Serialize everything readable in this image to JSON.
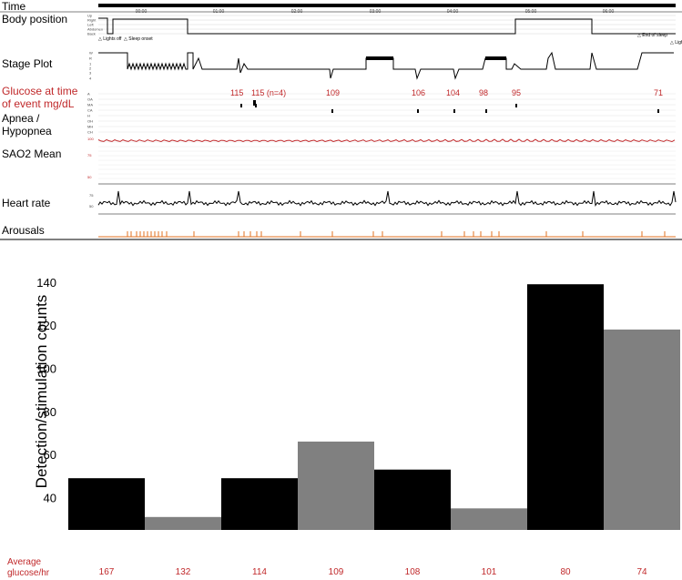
{
  "labels": {
    "time": "Time",
    "body_position": "Body position",
    "stage_plot": "Stage Plot",
    "glucose_line1": "Glucose at time",
    "glucose_line2": "of event mg/dL",
    "apnea_line1": "Apnea /",
    "apnea_line2": "Hypopnea",
    "sao2": "SAO2 Mean",
    "heart_rate": "Heart rate",
    "arousals": "Arousals",
    "avg_line1": "Average",
    "avg_line2": "glucose/hr"
  },
  "time_ticks": [
    "00:00",
    "01:00",
    "02:00",
    "03:00",
    "04:00",
    "05:00",
    "06:00"
  ],
  "body_position_levels": [
    "Up",
    "Right",
    "Left",
    "Abdomen",
    "Back"
  ],
  "body_position_annotations": [
    "Lights off",
    "Sleep onset",
    "End of sleep",
    "Lights on"
  ],
  "stage_levels": [
    "W",
    "R",
    "1",
    "2",
    "3",
    "4"
  ],
  "apnea_levels": [
    "A",
    "OA",
    "MA",
    "CA",
    "H",
    "OH",
    "MH",
    "CH"
  ],
  "sao2_ticks": [
    "100",
    "75",
    "50"
  ],
  "hr_ticks": [
    "75",
    "50"
  ],
  "glucose_events": [
    {
      "label": "115"
    },
    {
      "label": "115 (n=4)"
    },
    {
      "label": "109"
    },
    {
      "label": "106"
    },
    {
      "label": "104"
    },
    {
      "label": "98"
    },
    {
      "label": "95"
    },
    {
      "label": "71"
    }
  ],
  "colors": {
    "dark_bar": "#000000",
    "light_bar": "#808080",
    "glucose_text": "#c0282a",
    "arousal": "#e07020",
    "sao2_trace": "#c0282a"
  },
  "chart_data": {
    "type": "bar",
    "ylabel": "Detection/stimulation counts",
    "ylim": [
      25,
      145
    ],
    "yticks": [
      40,
      60,
      80,
      100,
      120,
      140
    ],
    "grid": false,
    "series": [
      {
        "values": [
          49,
          31,
          49,
          66,
          53,
          35,
          139,
          118
        ],
        "average_glucose": [
          "167",
          "132",
          "114",
          "109",
          "108",
          "101",
          "80",
          "74"
        ],
        "colors": [
          "#000000",
          "#808080",
          "#000000",
          "#808080",
          "#000000",
          "#808080",
          "#000000",
          "#808080"
        ]
      }
    ]
  }
}
